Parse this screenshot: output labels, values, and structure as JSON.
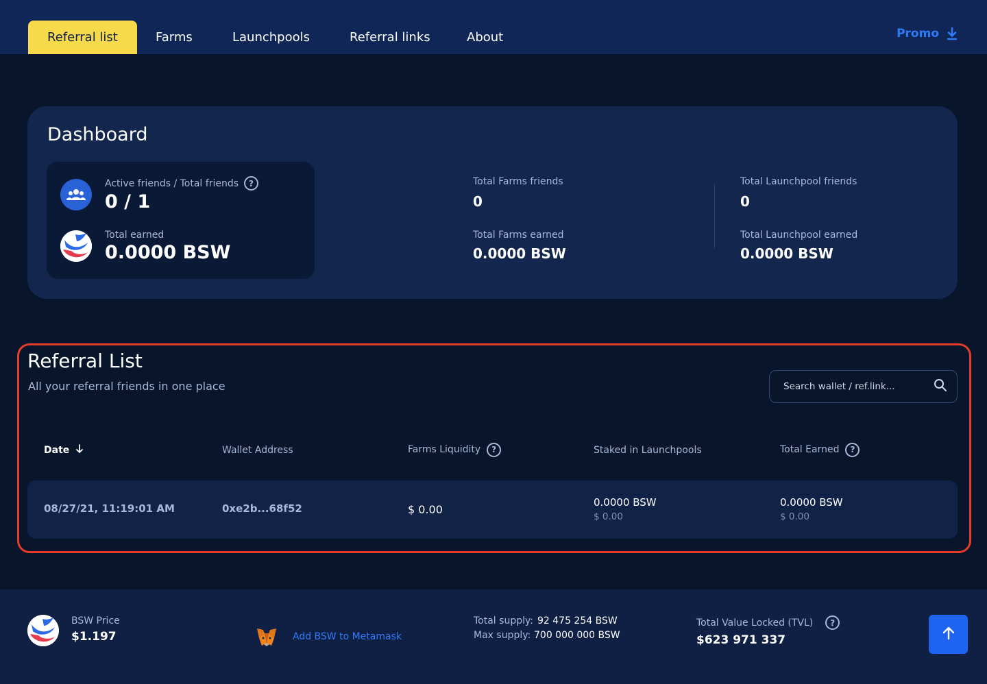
{
  "nav": {
    "tabs": [
      "Referral list",
      "Farms",
      "Launchpools",
      "Referral links",
      "About"
    ],
    "active_tab": "Referral list",
    "promo_label": "Promo"
  },
  "dashboard": {
    "title": "Dashboard",
    "friends_label": "Active friends / Total friends",
    "friends_value": "0 / 1",
    "earned_label": "Total earned",
    "earned_value": "0.0000 BSW",
    "farms_friends_label": "Total Farms friends",
    "farms_friends_value": "0",
    "farms_earned_label": "Total Farms earned",
    "farms_earned_value": "0.0000 BSW",
    "launchpool_friends_label": "Total Launchpool friends",
    "launchpool_friends_value": "0",
    "launchpool_earned_label": "Total Launchpool earned",
    "launchpool_earned_value": "0.0000 BSW"
  },
  "referral_list": {
    "title": "Referral List",
    "subtitle": "All your referral friends in one place",
    "search_placeholder": "Search wallet / ref.link...",
    "columns": [
      "Date",
      "Wallet Address",
      "Farms Liquidity",
      "Staked in Launchpools",
      "Total Earned"
    ],
    "rows": [
      {
        "date": "08/27/21, 11:19:01 AM",
        "wallet": "0xe2b...68f52",
        "farms_liquidity": "$ 0.00",
        "staked": "0.0000 BSW",
        "staked_usd": "$ 0.00",
        "earned": "0.0000 BSW",
        "earned_usd": "$ 0.00"
      }
    ]
  },
  "footer": {
    "price_label": "BSW Price",
    "price_value": "$1.197",
    "metamask_label": "Add BSW to Metamask",
    "total_supply_label": "Total supply:",
    "total_supply_value": "92 475 254 BSW",
    "max_supply_label": "Max supply:",
    "max_supply_value": "700 000 000 BSW",
    "tvl_label": "Total Value Locked (TVL)",
    "tvl_value": "$623 971 337"
  },
  "colors": {
    "accent_yellow": "#f7d94c",
    "accent_blue": "#2f7bf5",
    "highlight_red": "#e53d2a",
    "background": "#08152b"
  },
  "icons": [
    "download-icon",
    "friends-icon",
    "biswap-logo-icon",
    "help-icon",
    "sort-down-icon",
    "search-icon",
    "metamask-fox-icon",
    "arrow-up-icon"
  ]
}
